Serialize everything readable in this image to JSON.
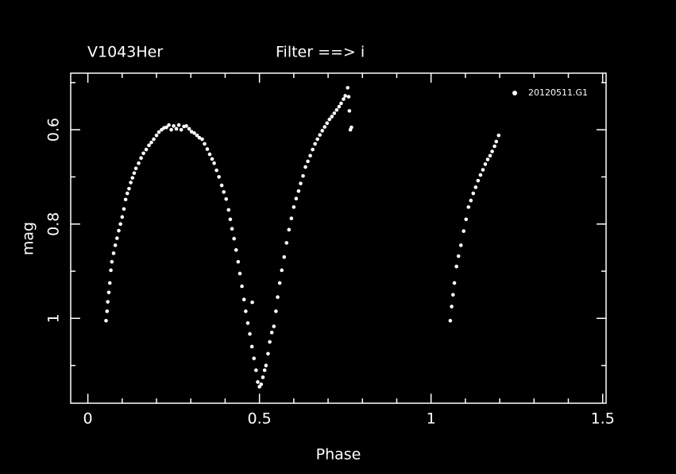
{
  "chart_data": {
    "type": "scatter",
    "title": "V1043Her",
    "subtitle": "Filter ==> i",
    "x_label": "Phase",
    "y_label": "mag",
    "xlim": [
      -0.05,
      1.51
    ],
    "ylim": [
      0.48,
      1.18
    ],
    "y_inverted": true,
    "xticks": [
      0,
      0.5,
      1,
      1.5
    ],
    "xminor_ticks": [
      0.1,
      0.2,
      0.3,
      0.4,
      0.6,
      0.7,
      0.8,
      0.9,
      1.1,
      1.2,
      1.3,
      1.4
    ],
    "yticks": [
      0.6,
      0.8,
      1
    ],
    "yminor_ticks": [
      0.5,
      0.7,
      0.9,
      1.1
    ],
    "legend": "upper right",
    "series": [
      {
        "name": "20120511.G1",
        "color": "#ffffff",
        "x": [
          0.053,
          0.056,
          0.058,
          0.061,
          0.064,
          0.067,
          0.07,
          0.075,
          0.08,
          0.085,
          0.09,
          0.095,
          0.1,
          0.105,
          0.11,
          0.115,
          0.12,
          0.125,
          0.13,
          0.135,
          0.14,
          0.148,
          0.155,
          0.162,
          0.17,
          0.178,
          0.185,
          0.192,
          0.2,
          0.207,
          0.215,
          0.222,
          0.229,
          0.236,
          0.243,
          0.25,
          0.258,
          0.265,
          0.272,
          0.28,
          0.287,
          0.295,
          0.302,
          0.31,
          0.318,
          0.325,
          0.333,
          0.34,
          0.348,
          0.355,
          0.362,
          0.368,
          0.375,
          0.382,
          0.39,
          0.396,
          0.403,
          0.41,
          0.415,
          0.42,
          0.426,
          0.432,
          0.438,
          0.443,
          0.449,
          0.455,
          0.46,
          0.466,
          0.472,
          0.478,
          0.484,
          0.49,
          0.495,
          0.5,
          0.505,
          0.51,
          0.515,
          0.519,
          0.525,
          0.53,
          0.536,
          0.542,
          0.548,
          0.553,
          0.559,
          0.565,
          0.572,
          0.579,
          0.586,
          0.593,
          0.6,
          0.607,
          0.614,
          0.62,
          0.627,
          0.634,
          0.641,
          0.648,
          0.655,
          0.662,
          0.669,
          0.676,
          0.683,
          0.69,
          0.697,
          0.704,
          0.711,
          0.718,
          0.725,
          0.732,
          0.738,
          0.745,
          0.75,
          0.757,
          0.76,
          0.762,
          0.765,
          0.768,
          0.479,
          1.056,
          1.06,
          1.064,
          1.068,
          1.074,
          1.08,
          1.087,
          1.095,
          1.102,
          1.109,
          1.116,
          1.123,
          1.13,
          1.137,
          1.144,
          1.151,
          1.158,
          1.165,
          1.172,
          1.178,
          1.185,
          1.19,
          1.197
        ],
        "values": [
          1.005,
          0.985,
          0.965,
          0.945,
          0.925,
          0.898,
          0.88,
          0.862,
          0.845,
          0.83,
          0.814,
          0.8,
          0.785,
          0.768,
          0.748,
          0.735,
          0.725,
          0.712,
          0.702,
          0.692,
          0.682,
          0.671,
          0.66,
          0.65,
          0.642,
          0.633,
          0.627,
          0.62,
          0.612,
          0.605,
          0.6,
          0.596,
          0.595,
          0.59,
          0.6,
          0.592,
          0.598,
          0.59,
          0.6,
          0.593,
          0.592,
          0.598,
          0.604,
          0.607,
          0.612,
          0.617,
          0.62,
          0.63,
          0.641,
          0.652,
          0.662,
          0.671,
          0.686,
          0.7,
          0.718,
          0.732,
          0.747,
          0.77,
          0.79,
          0.81,
          0.831,
          0.855,
          0.88,
          0.905,
          0.932,
          0.96,
          0.985,
          1.01,
          1.033,
          1.06,
          1.085,
          1.11,
          1.135,
          1.145,
          1.14,
          1.125,
          1.11,
          1.1,
          1.075,
          1.05,
          1.03,
          1.017,
          0.985,
          0.955,
          0.925,
          0.898,
          0.87,
          0.84,
          0.812,
          0.788,
          0.764,
          0.746,
          0.73,
          0.714,
          0.698,
          0.679,
          0.667,
          0.655,
          0.642,
          0.63,
          0.62,
          0.611,
          0.602,
          0.594,
          0.586,
          0.578,
          0.572,
          0.565,
          0.558,
          0.551,
          0.544,
          0.535,
          0.528,
          0.511,
          0.53,
          0.56,
          0.6,
          0.595,
          0.966,
          1.005,
          0.975,
          0.95,
          0.925,
          0.89,
          0.868,
          0.845,
          0.815,
          0.79,
          0.764,
          0.75,
          0.735,
          0.722,
          0.708,
          0.696,
          0.685,
          0.673,
          0.663,
          0.655,
          0.646,
          0.635,
          0.625,
          0.612
        ]
      }
    ]
  }
}
